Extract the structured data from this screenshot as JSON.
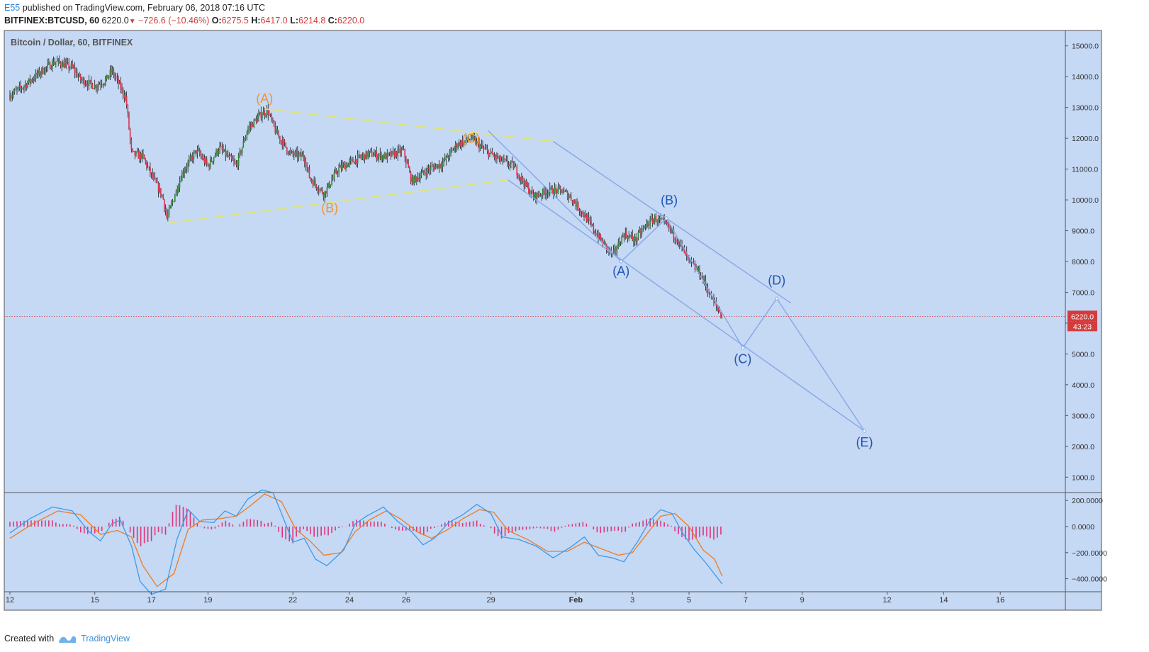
{
  "header": {
    "user": "E55",
    "published_text": "published on TradingView.com, February 06, 2018 07:16 UTC",
    "symbol": "BITFINEX:BTCUSD, 60",
    "last": "6220.0",
    "change": "−726.6 (−10.46%)",
    "o_label": "O:",
    "o_value": "6275.5",
    "h_label": "H:",
    "h_value": "6417.0",
    "l_label": "L:",
    "l_value": "6214.8",
    "c_label": "C:",
    "c_value": "6220.0"
  },
  "footer": {
    "created": "Created with",
    "brand": "TradingView"
  },
  "colors": {
    "plot_bg": "#c5d8f4",
    "up": "#2e8b2e",
    "down": "#e0324d",
    "trend_yellow": "#e4e86a",
    "trend_blue": "#85a9e6",
    "label_orange": "#f0962f",
    "label_blue": "#1f56b5",
    "macd_blue": "#3d9be9",
    "signal_orange": "#f07b1d",
    "hist": "#e0357a",
    "price_line": "#d23c3c"
  },
  "chart_data": {
    "type": "candlestick",
    "title": "Bitcoin / Dollar, 60, BITFINEX",
    "price_axis": {
      "range": [
        500,
        15500
      ],
      "ticks": [
        1000,
        2000,
        3000,
        4000,
        5000,
        6000,
        7000,
        8000,
        9000,
        10000,
        11000,
        12000,
        13000,
        14000,
        15000
      ],
      "tick_labels": [
        "1000.0",
        "2000.0",
        "3000.0",
        "4000.0",
        "5000.0",
        "6000.0",
        "7000.0",
        "8000.0",
        "9000.0",
        "10000.0",
        "11000.0",
        "12000.0",
        "13000.0",
        "14000.0",
        "15000.0"
      ]
    },
    "time_axis": {
      "range_days": [
        -0.2,
        37.3
      ],
      "note": "day offsets from Jan 12, 2018",
      "ticks": [
        {
          "day": 0,
          "label": "12"
        },
        {
          "day": 3,
          "label": "15"
        },
        {
          "day": 5,
          "label": "17"
        },
        {
          "day": 7,
          "label": "19"
        },
        {
          "day": 10,
          "label": "22"
        },
        {
          "day": 12,
          "label": "24"
        },
        {
          "day": 14,
          "label": "26"
        },
        {
          "day": 17,
          "label": "29"
        },
        {
          "day": 20,
          "label": "Feb"
        },
        {
          "day": 22,
          "label": "3"
        },
        {
          "day": 24,
          "label": "5"
        },
        {
          "day": 26,
          "label": "7"
        },
        {
          "day": 28,
          "label": "9"
        },
        {
          "day": 31,
          "label": "12"
        },
        {
          "day": 33,
          "label": "14"
        },
        {
          "day": 35,
          "label": "16"
        }
      ]
    },
    "price_path": [
      [
        0,
        13400
      ],
      [
        0.5,
        13700
      ],
      [
        1,
        14100
      ],
      [
        1.6,
        14500
      ],
      [
        2.2,
        14300
      ],
      [
        2.5,
        13900
      ],
      [
        3,
        13700
      ],
      [
        3.4,
        13900
      ],
      [
        3.6,
        14200
      ],
      [
        4.1,
        13300
      ],
      [
        4.3,
        11500
      ],
      [
        4.7,
        11400
      ],
      [
        5.0,
        10800
      ],
      [
        5.4,
        10100
      ],
      [
        5.55,
        9400
      ],
      [
        6.1,
        10900
      ],
      [
        6.6,
        11600
      ],
      [
        7.0,
        11100
      ],
      [
        7.4,
        11700
      ],
      [
        8.0,
        11100
      ],
      [
        8.4,
        12300
      ],
      [
        8.9,
        12800
      ],
      [
        9.1,
        12900
      ],
      [
        9.4,
        12200
      ],
      [
        9.9,
        11500
      ],
      [
        10.4,
        11400
      ],
      [
        10.6,
        10700
      ],
      [
        11.1,
        10200
      ],
      [
        11.6,
        11000
      ],
      [
        12.2,
        11300
      ],
      [
        12.7,
        11500
      ],
      [
        13.3,
        11400
      ],
      [
        13.9,
        11600
      ],
      [
        14.2,
        10600
      ],
      [
        14.8,
        11000
      ],
      [
        15.3,
        11200
      ],
      [
        15.8,
        11800
      ],
      [
        16.3,
        12000
      ],
      [
        16.8,
        11600
      ],
      [
        17.3,
        11300
      ],
      [
        17.8,
        11100
      ],
      [
        18.2,
        10500
      ],
      [
        18.5,
        10100
      ],
      [
        19.0,
        10300
      ],
      [
        19.5,
        10300
      ],
      [
        19.8,
        10100
      ],
      [
        20.3,
        9500
      ],
      [
        20.8,
        8800
      ],
      [
        21.3,
        8200
      ],
      [
        21.7,
        8900
      ],
      [
        22.1,
        8700
      ],
      [
        22.5,
        9200
      ],
      [
        22.8,
        9400
      ],
      [
        23.2,
        9200
      ],
      [
        23.6,
        8700
      ],
      [
        24.0,
        8000
      ],
      [
        24.4,
        7600
      ],
      [
        24.8,
        6800
      ],
      [
        25.17,
        6220
      ]
    ],
    "last_price": 6220.0,
    "last_price_label": "6220.0",
    "countdown_label": "43:23",
    "trendlines": [
      {
        "color": "yellow",
        "points": [
          [
            9.0,
            12950
          ],
          [
            19.2,
            11900
          ]
        ]
      },
      {
        "color": "yellow",
        "points": [
          [
            5.6,
            9250
          ],
          [
            17.6,
            10650
          ]
        ]
      },
      {
        "color": "blue",
        "points": [
          [
            19.2,
            11900
          ],
          [
            27.6,
            6650
          ]
        ]
      },
      {
        "color": "blue",
        "points": [
          [
            17.6,
            10650
          ],
          [
            30.2,
            2500
          ]
        ]
      },
      {
        "color": "blue",
        "points": [
          [
            16.9,
            12250
          ],
          [
            21.6,
            8000
          ],
          [
            23.2,
            9400
          ],
          [
            25.9,
            5200
          ],
          [
            27.1,
            6800
          ],
          [
            30.2,
            2500
          ]
        ]
      }
    ],
    "wave_labels": [
      {
        "text": "(A)",
        "day": 9.0,
        "price": 13150,
        "color": "orange"
      },
      {
        "text": "(B)",
        "day": 11.3,
        "price": 9600,
        "color": "orange"
      },
      {
        "text": "(C)",
        "day": 16.3,
        "price": 11850,
        "color": "orange"
      },
      {
        "text": "(A)",
        "day": 21.6,
        "price": 7550,
        "color": "blue"
      },
      {
        "text": "(B)",
        "day": 23.3,
        "price": 9850,
        "color": "blue"
      },
      {
        "text": "(C)",
        "day": 25.9,
        "price": 4700,
        "color": "blue"
      },
      {
        "text": "(D)",
        "day": 27.1,
        "price": 7250,
        "color": "blue"
      },
      {
        "text": "(E)",
        "day": 30.2,
        "price": 2000,
        "color": "blue"
      }
    ],
    "macd": {
      "range": [
        -500,
        250
      ],
      "ticks": [
        200,
        0,
        -200,
        -400
      ],
      "tick_labels": [
        "200.0000",
        "0.0000",
        "−200.0000",
        "−400.0000"
      ],
      "macd_path": [
        [
          0,
          -50
        ],
        [
          0.7,
          60
        ],
        [
          1.5,
          150
        ],
        [
          2.2,
          120
        ],
        [
          2.8,
          -40
        ],
        [
          3.2,
          -110
        ],
        [
          3.6,
          20
        ],
        [
          3.9,
          50
        ],
        [
          4.3,
          -150
        ],
        [
          4.6,
          -420
        ],
        [
          5.0,
          -520
        ],
        [
          5.5,
          -480
        ],
        [
          5.9,
          -100
        ],
        [
          6.3,
          130
        ],
        [
          6.7,
          40
        ],
        [
          7.2,
          30
        ],
        [
          7.6,
          120
        ],
        [
          8.0,
          80
        ],
        [
          8.4,
          210
        ],
        [
          8.9,
          280
        ],
        [
          9.3,
          260
        ],
        [
          9.6,
          100
        ],
        [
          10.0,
          -120
        ],
        [
          10.4,
          -90
        ],
        [
          10.8,
          -250
        ],
        [
          11.2,
          -300
        ],
        [
          11.8,
          -180
        ],
        [
          12.2,
          20
        ],
        [
          12.6,
          80
        ],
        [
          13.2,
          150
        ],
        [
          13.7,
          40
        ],
        [
          14.2,
          -40
        ],
        [
          14.6,
          -140
        ],
        [
          15.0,
          -90
        ],
        [
          15.5,
          30
        ],
        [
          16.0,
          90
        ],
        [
          16.5,
          170
        ],
        [
          17.0,
          100
        ],
        [
          17.4,
          -80
        ],
        [
          18.0,
          -100
        ],
        [
          18.6,
          -150
        ],
        [
          19.2,
          -240
        ],
        [
          19.8,
          -160
        ],
        [
          20.3,
          -80
        ],
        [
          20.8,
          -220
        ],
        [
          21.3,
          -240
        ],
        [
          21.7,
          -270
        ],
        [
          22.2,
          -110
        ],
        [
          22.6,
          40
        ],
        [
          23.0,
          130
        ],
        [
          23.4,
          100
        ],
        [
          23.8,
          -60
        ],
        [
          24.2,
          -180
        ],
        [
          24.6,
          -280
        ],
        [
          25.17,
          -440
        ]
      ],
      "signal_path": [
        [
          0,
          -90
        ],
        [
          0.8,
          20
        ],
        [
          1.7,
          120
        ],
        [
          2.5,
          90
        ],
        [
          3.2,
          -60
        ],
        [
          3.8,
          -30
        ],
        [
          4.3,
          -80
        ],
        [
          4.7,
          -300
        ],
        [
          5.2,
          -460
        ],
        [
          5.8,
          -360
        ],
        [
          6.3,
          -20
        ],
        [
          6.8,
          50
        ],
        [
          7.4,
          60
        ],
        [
          8.0,
          80
        ],
        [
          8.5,
          160
        ],
        [
          9.0,
          250
        ],
        [
          9.6,
          190
        ],
        [
          10.1,
          -20
        ],
        [
          10.6,
          -110
        ],
        [
          11.1,
          -220
        ],
        [
          11.7,
          -200
        ],
        [
          12.2,
          -40
        ],
        [
          12.7,
          50
        ],
        [
          13.3,
          120
        ],
        [
          13.8,
          60
        ],
        [
          14.4,
          -40
        ],
        [
          14.9,
          -90
        ],
        [
          15.5,
          -20
        ],
        [
          16.0,
          60
        ],
        [
          16.6,
          130
        ],
        [
          17.1,
          110
        ],
        [
          17.6,
          -30
        ],
        [
          18.3,
          -100
        ],
        [
          19.0,
          -190
        ],
        [
          19.7,
          -190
        ],
        [
          20.3,
          -120
        ],
        [
          20.9,
          -170
        ],
        [
          21.5,
          -220
        ],
        [
          22.0,
          -200
        ],
        [
          22.5,
          -60
        ],
        [
          23.0,
          80
        ],
        [
          23.5,
          100
        ],
        [
          24.0,
          0
        ],
        [
          24.5,
          -180
        ],
        [
          24.9,
          -250
        ],
        [
          25.17,
          -380
        ]
      ]
    }
  }
}
